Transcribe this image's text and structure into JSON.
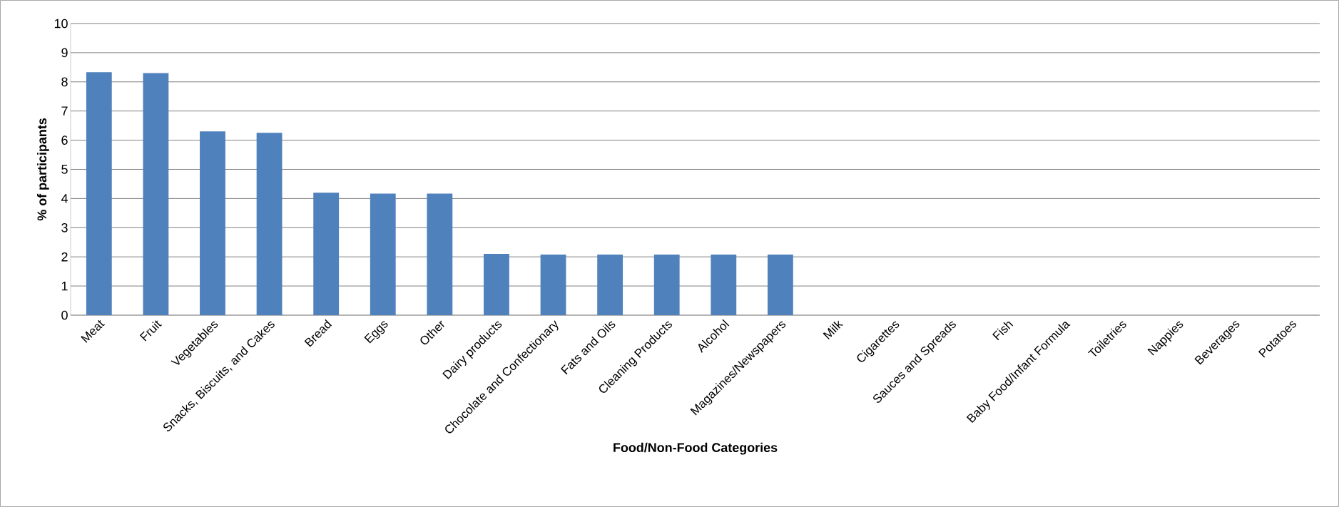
{
  "chart_data": {
    "type": "bar",
    "xlabel": "Food/Non-Food Categories",
    "ylabel": "% of participants",
    "categories": [
      "Meat",
      "Fruit",
      "Vegetables",
      "Snacks, Biscuits, and Cakes",
      "Bread",
      "Eggs",
      "Other",
      "Dairy products",
      "Chocolate and Confectionary",
      "Fats and Oils",
      "Cleaning Products",
      "Alcohol",
      "Magazines/Newspapers",
      "Milk",
      "Cigarettes",
      "Sauces and Spreads",
      "Fish",
      "Baby Food/Infant Formula",
      "Toiletries",
      "Nappies",
      "Beverages",
      "Potatoes"
    ],
    "values": [
      8.33,
      8.3,
      6.3,
      6.25,
      4.2,
      4.17,
      4.17,
      2.1,
      2.08,
      2.08,
      2.08,
      2.08,
      2.08,
      0,
      0,
      0,
      0,
      0,
      0,
      0,
      0,
      0
    ],
    "color": "#4f81bd",
    "ylim": [
      0,
      10
    ],
    "yticks": [
      0,
      1,
      2,
      3,
      4,
      5,
      6,
      7,
      8,
      9,
      10
    ],
    "grid": "y"
  }
}
